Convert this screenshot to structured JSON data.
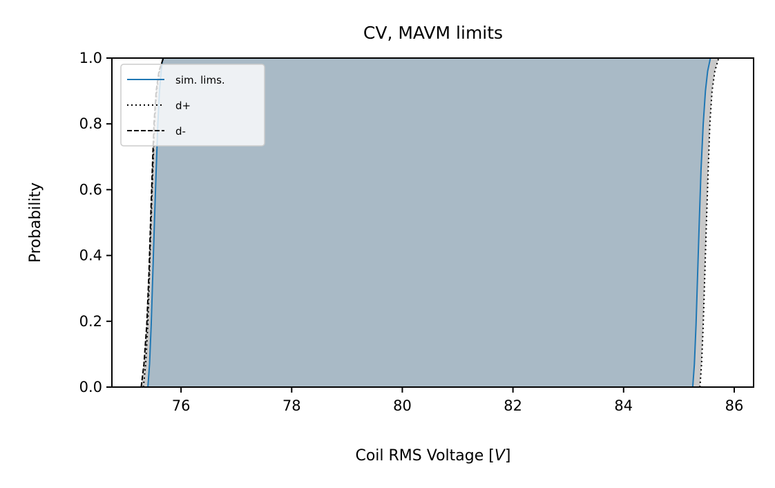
{
  "chart_data": {
    "type": "line",
    "title": "CV, MAVM limits",
    "xlabel_prefix": "Coil RMS Voltage [",
    "xlabel_var": "V",
    "xlabel_suffix": "]",
    "ylabel": "Probability",
    "xlim": [
      74.75,
      86.35
    ],
    "ylim": [
      0.0,
      1.0
    ],
    "xticks": [
      76,
      78,
      80,
      82,
      84,
      86
    ],
    "yticks": [
      0.0,
      0.2,
      0.4,
      0.6,
      0.8,
      1.0
    ],
    "xtick_labels": [
      "76",
      "78",
      "80",
      "82",
      "84",
      "86"
    ],
    "ytick_labels": [
      "0.0",
      "0.2",
      "0.4",
      "0.6",
      "0.8",
      "1.0"
    ],
    "legend_position": "upper-left",
    "series": [
      {
        "name": "sim. lims.",
        "style": "solid",
        "color": "#1f77b4",
        "lower": {
          "x": [
            75.4,
            75.43,
            75.46,
            75.49,
            75.52,
            75.55,
            75.58,
            75.61,
            75.64,
            75.67
          ],
          "y": [
            0.0,
            0.07,
            0.19,
            0.35,
            0.51,
            0.66,
            0.8,
            0.9,
            0.96,
            1.0
          ]
        },
        "upper": {
          "x": [
            85.25,
            85.28,
            85.31,
            85.34,
            85.37,
            85.4,
            85.44,
            85.48,
            85.52,
            85.57
          ],
          "y": [
            0.0,
            0.07,
            0.19,
            0.35,
            0.51,
            0.66,
            0.8,
            0.9,
            0.96,
            1.0
          ]
        }
      },
      {
        "name": "d+",
        "style": "dotted",
        "color": "#000000",
        "lower": {
          "x": [
            75.32,
            75.36,
            75.4,
            75.43,
            75.46,
            75.49,
            75.52,
            75.56,
            75.61,
            75.68
          ],
          "y": [
            0.0,
            0.07,
            0.19,
            0.35,
            0.51,
            0.66,
            0.8,
            0.9,
            0.96,
            1.0
          ]
        },
        "upper": {
          "x": [
            85.38,
            85.41,
            85.44,
            85.47,
            85.5,
            85.53,
            85.56,
            85.6,
            85.65,
            85.72
          ],
          "y": [
            0.0,
            0.07,
            0.19,
            0.35,
            0.51,
            0.66,
            0.8,
            0.9,
            0.96,
            1.0
          ]
        }
      },
      {
        "name": "d-",
        "style": "dashed",
        "color": "#000000",
        "lower": {
          "x": [
            75.28,
            75.33,
            75.38,
            75.42,
            75.45,
            75.48,
            75.51,
            75.55,
            75.6,
            75.68
          ],
          "y": [
            0.0,
            0.07,
            0.19,
            0.35,
            0.51,
            0.66,
            0.8,
            0.9,
            0.96,
            1.0
          ]
        }
      }
    ],
    "fill_colors": {
      "inner": "#a9bac6",
      "outer": "#c9c9c9"
    }
  }
}
